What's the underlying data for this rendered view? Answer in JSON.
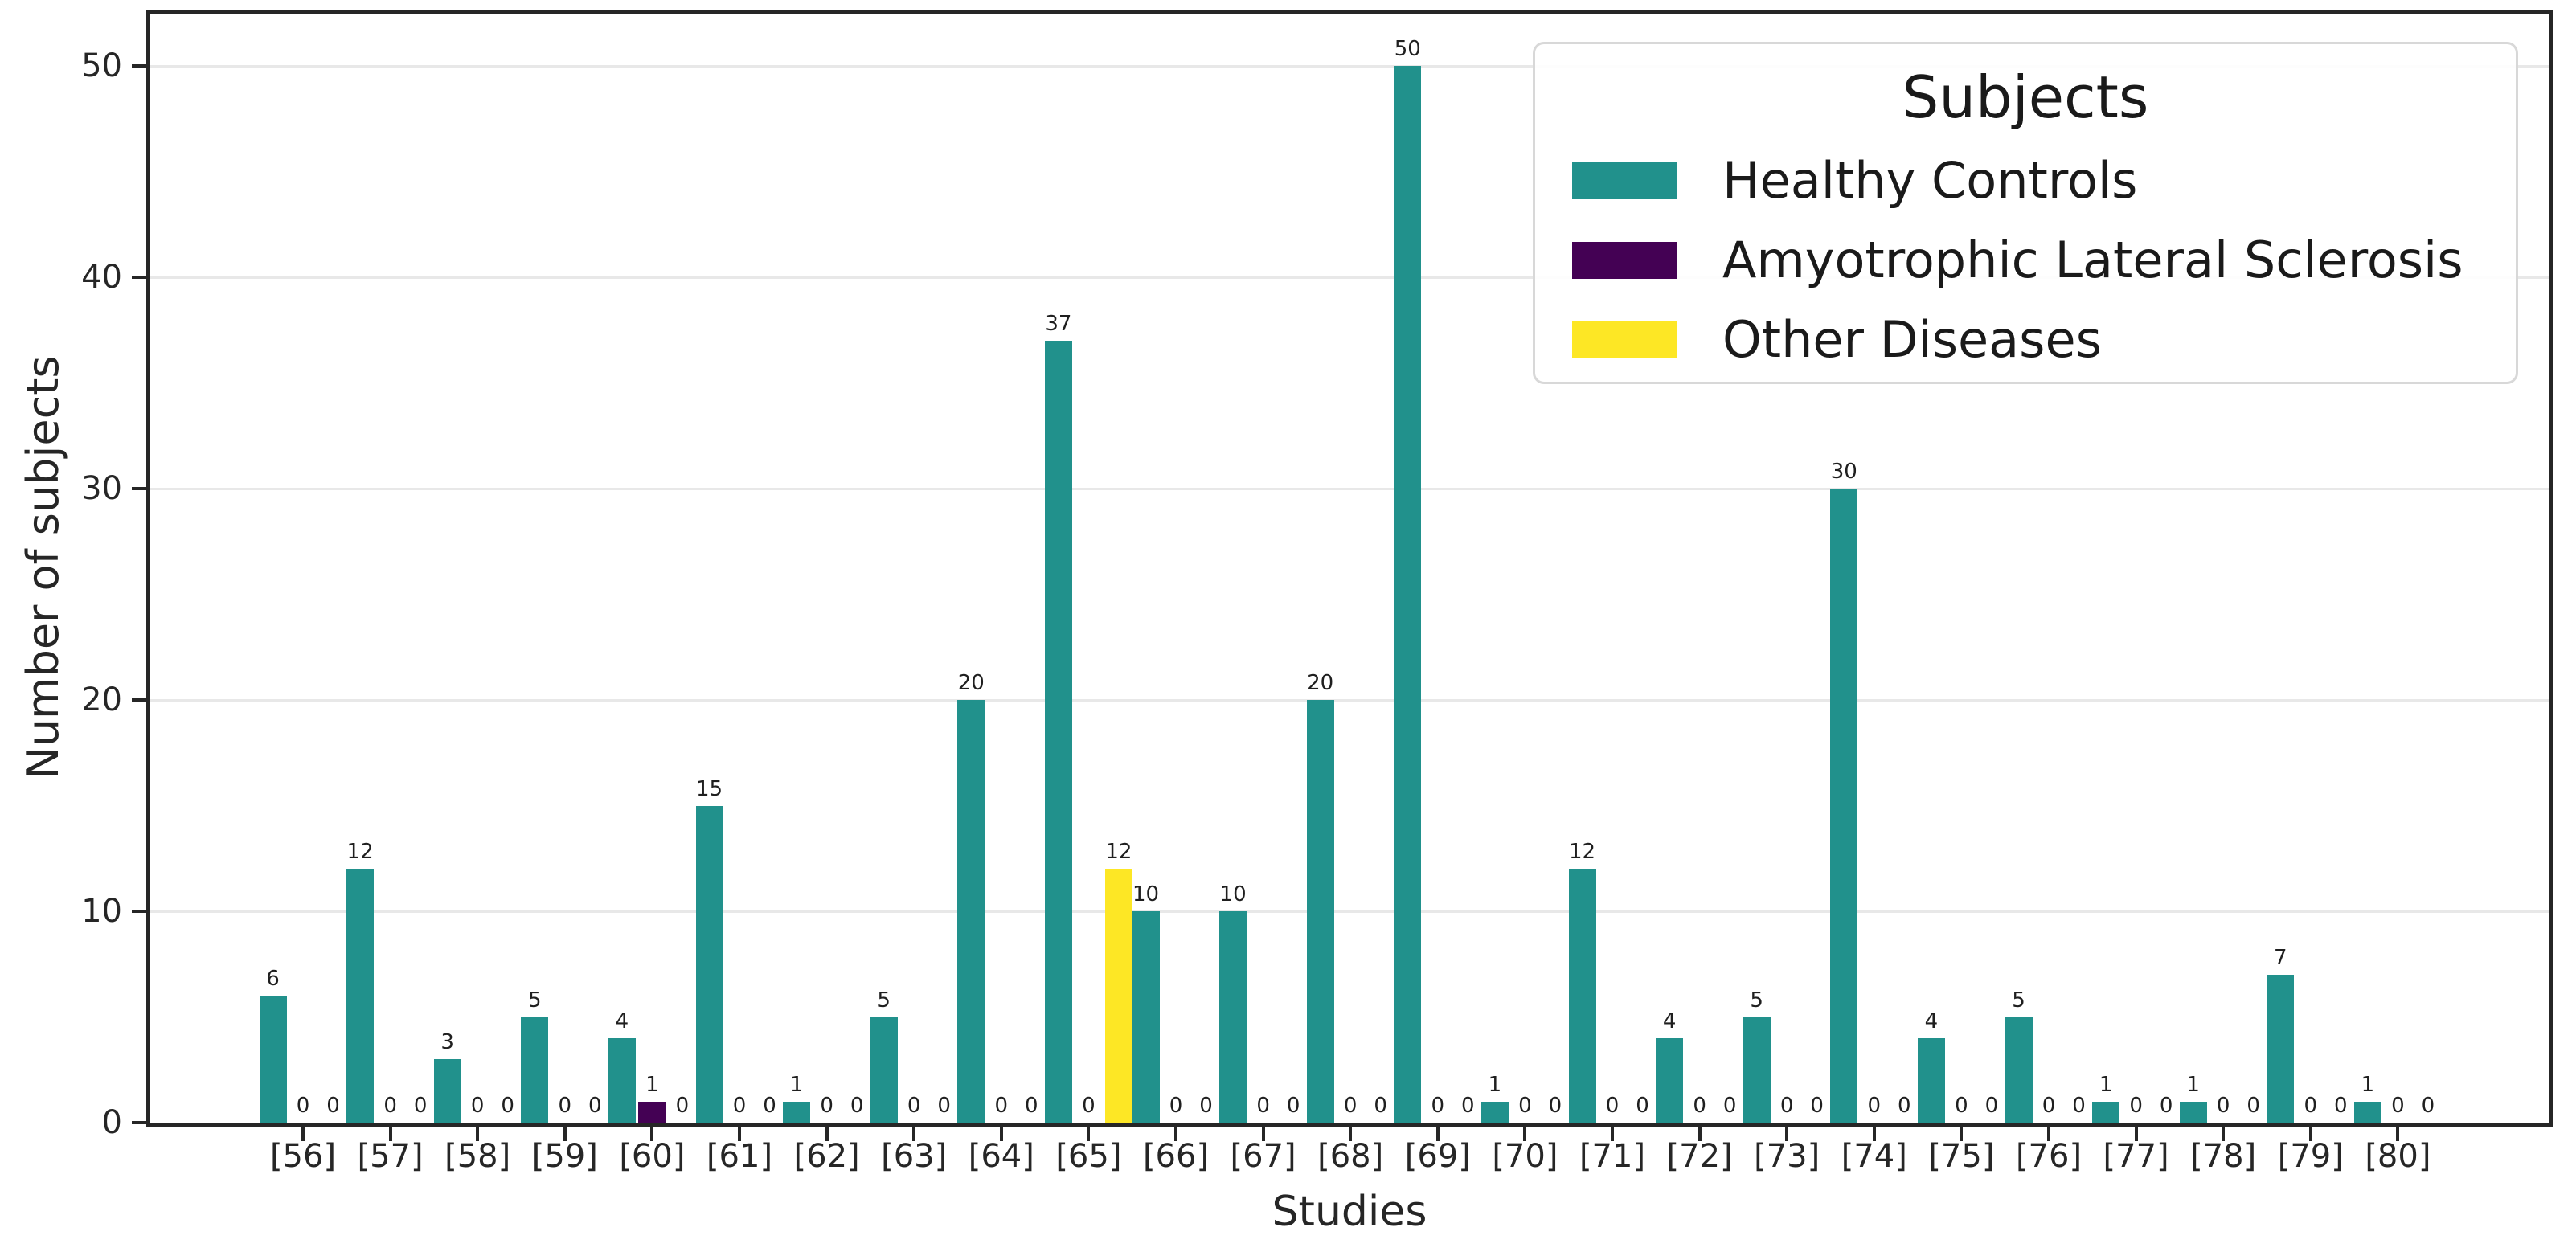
{
  "chart_data": {
    "type": "bar",
    "title": "",
    "xlabel": "Studies",
    "ylabel": "Number of subjects",
    "categories": [
      "[56]",
      "[57]",
      "[58]",
      "[59]",
      "[60]",
      "[61]",
      "[62]",
      "[63]",
      "[64]",
      "[65]",
      "[66]",
      "[67]",
      "[68]",
      "[69]",
      "[70]",
      "[71]",
      "[72]",
      "[73]",
      "[74]",
      "[75]",
      "[76]",
      "[77]",
      "[78]",
      "[79]",
      "[80]"
    ],
    "series": [
      {
        "name": "Healthy Controls",
        "color": "#21918c",
        "values": [
          6,
          12,
          3,
          5,
          4,
          15,
          1,
          5,
          20,
          37,
          10,
          10,
          20,
          50,
          1,
          12,
          4,
          5,
          30,
          4,
          5,
          1,
          1,
          7,
          1
        ]
      },
      {
        "name": "Amyotrophic Lateral Sclerosis",
        "color": "#440154",
        "values": [
          0,
          0,
          0,
          0,
          1,
          0,
          0,
          0,
          0,
          0,
          0,
          0,
          0,
          0,
          0,
          0,
          0,
          0,
          0,
          0,
          0,
          0,
          0,
          0,
          0
        ]
      },
      {
        "name": "Other Diseases",
        "color": "#fde725",
        "values": [
          0,
          0,
          0,
          0,
          0,
          0,
          0,
          0,
          0,
          12,
          0,
          0,
          0,
          0,
          0,
          0,
          0,
          0,
          0,
          0,
          0,
          0,
          0,
          0,
          0
        ]
      }
    ],
    "legend": {
      "title": "Subjects",
      "position": "upper right"
    },
    "yticks": [
      0,
      10,
      20,
      30,
      40,
      50
    ],
    "ylim": [
      0,
      52.5
    ],
    "grid": true,
    "bar_value_labels": true,
    "colors": {
      "spine": "#262626",
      "gridline": "#e8e8e8",
      "text": "#262626",
      "legend_border": "#d8d8d8"
    }
  }
}
